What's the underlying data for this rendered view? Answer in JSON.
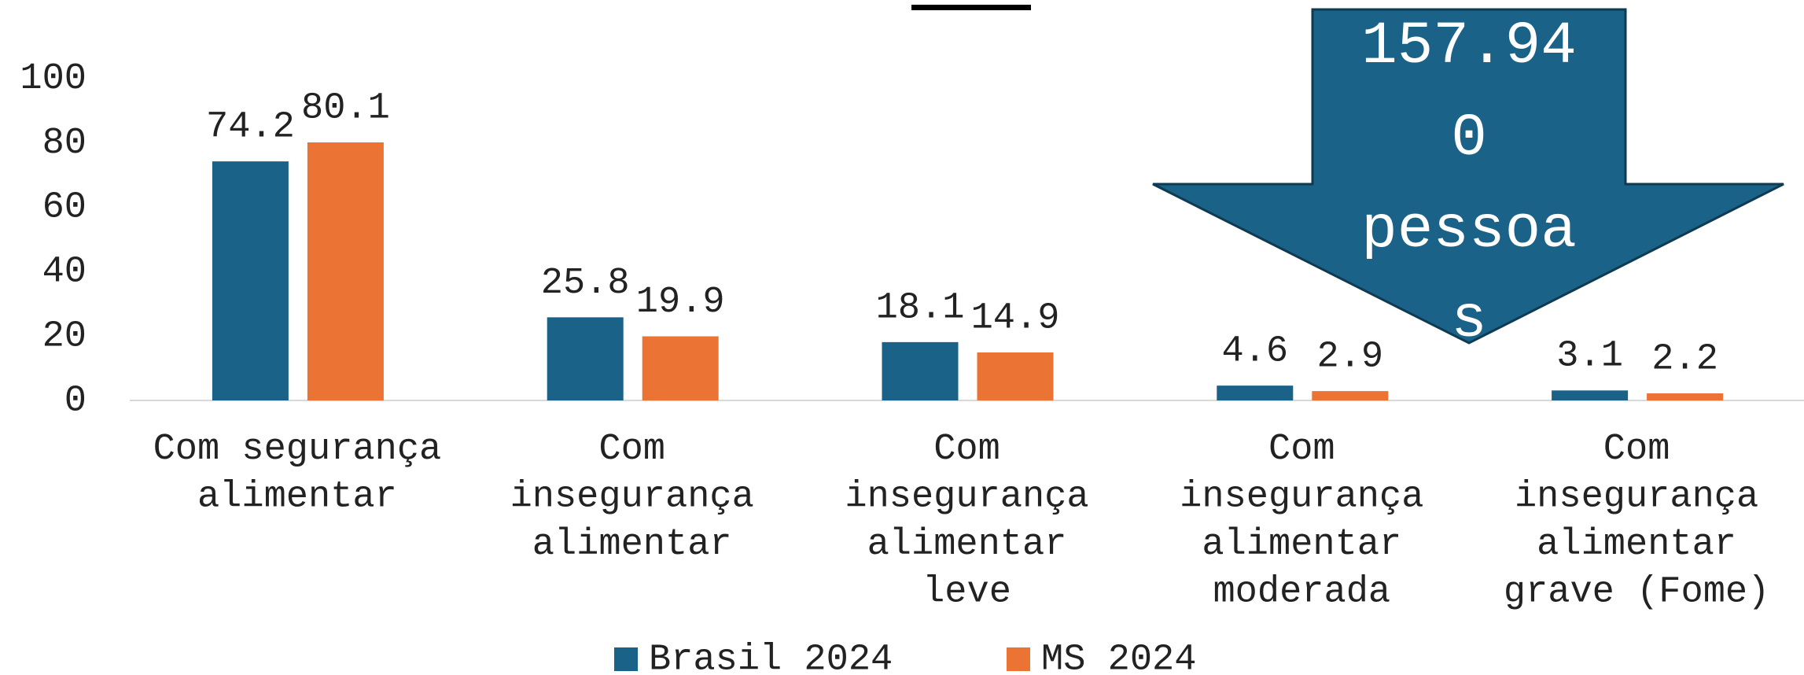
{
  "chart_data": {
    "type": "bar",
    "categories": [
      "Com segurança\nalimentar",
      "Com\ninsegurança\nalimentar",
      "Com\ninsegurança\nalimentar\nleve",
      "Com\ninsegurança\nalimentar\nmoderada",
      "Com\ninsegurança\nalimentar\ngrave (Fome)"
    ],
    "series": [
      {
        "name": "Brasil 2024",
        "color": "#1a6287",
        "values": [
          74.2,
          25.8,
          18.1,
          4.6,
          3.1
        ]
      },
      {
        "name": "MS 2024",
        "color": "#eb7434",
        "values": [
          80.1,
          19.9,
          14.9,
          2.9,
          2.2
        ]
      }
    ],
    "ylim": [
      0,
      100
    ],
    "yticks": [
      0,
      20,
      40,
      60,
      80,
      100
    ],
    "grid": false,
    "annotation": [
      "157.94",
      "0",
      "pessoa",
      "s"
    ]
  }
}
